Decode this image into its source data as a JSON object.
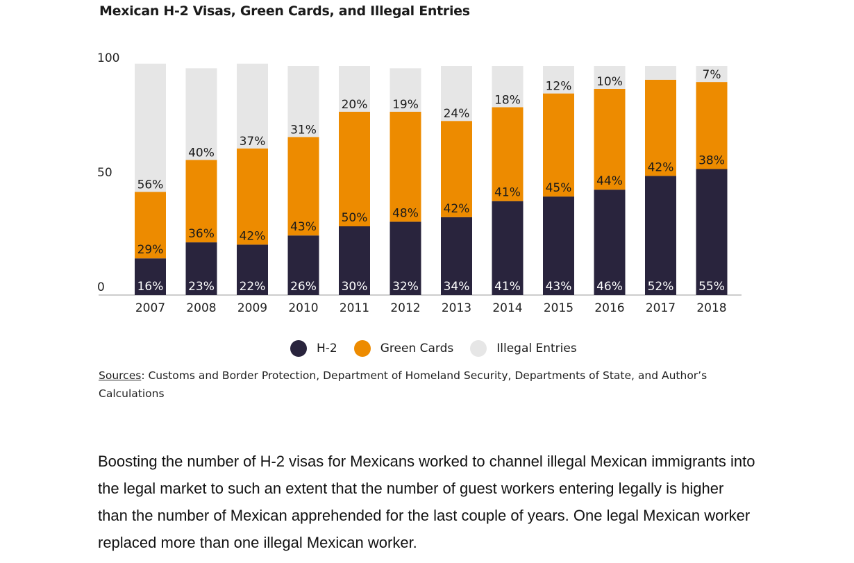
{
  "chart_data": {
    "type": "bar",
    "stacked": true,
    "title": "Mexican H-2 Visas, Green Cards, and Illegal Entries",
    "categories": [
      "2007",
      "2008",
      "2009",
      "2010",
      "2011",
      "2012",
      "2013",
      "2014",
      "2015",
      "2016",
      "2017",
      "2018"
    ],
    "series": [
      {
        "name": "H-2",
        "color": "#29243d",
        "values": [
          16,
          23,
          22,
          26,
          30,
          32,
          34,
          41,
          43,
          46,
          52,
          55
        ],
        "labels": [
          "16%",
          "23%",
          "22%",
          "26%",
          "30%",
          "32%",
          "34%",
          "41%",
          "43%",
          "46%",
          "52%",
          "55%"
        ]
      },
      {
        "name": "Green Cards",
        "color": "#ed8b00",
        "values": [
          29,
          36,
          42,
          43,
          50,
          48,
          42,
          41,
          45,
          44,
          42,
          38
        ],
        "labels": [
          "29%",
          "36%",
          "42%",
          "43%",
          "50%",
          "48%",
          "42%",
          "41%",
          "45%",
          "44%",
          "42%",
          "38%"
        ]
      },
      {
        "name": "Illegal Entries",
        "color": "#e6e6e6",
        "values": [
          56,
          40,
          37,
          31,
          20,
          19,
          24,
          18,
          12,
          10,
          6,
          7
        ],
        "labels": [
          "56%",
          "40%",
          "37%",
          "31%",
          "20%",
          "19%",
          "24%",
          "18%",
          "12%",
          "10%",
          "",
          "7%"
        ]
      }
    ],
    "yticks": [
      "0",
      "50",
      "100"
    ],
    "ylim": [
      0,
      100
    ],
    "legend": "bottom"
  },
  "sources": {
    "label": "Sources",
    "text": ": Customs and Border Protection, Department of Homeland Security, Departments of State, and Author’s Calculations"
  },
  "paragraph": "Boosting the number of H-2 visas for Mexicans worked to channel illegal Mexican immigrants into the legal market to such an extent that the number of guest workers entering legally is higher than the number of Mexican apprehended for the last couple of years.  One legal Mexican worker replaced more than one illegal Mexican worker."
}
